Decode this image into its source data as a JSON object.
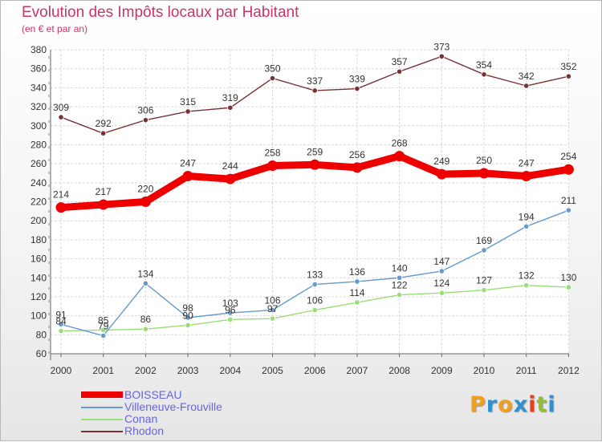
{
  "title": "Evolution des Impôts locaux par Habitant",
  "subtitle": "(en € et par an)",
  "logo": {
    "letters": [
      "P",
      "r",
      "o",
      "x",
      "i",
      "t",
      "i"
    ],
    "colors": [
      "#f0a020",
      "#3090d0",
      "#f0a020",
      "#3090d0",
      "#e04020",
      "#90c030",
      "#3090d0"
    ]
  },
  "chart_data": {
    "type": "line",
    "categories": [
      "2000",
      "2001",
      "2002",
      "2003",
      "2004",
      "2005",
      "2006",
      "2007",
      "2008",
      "2009",
      "2010",
      "2011",
      "2012"
    ],
    "ylim": [
      60,
      380
    ],
    "yticks": [
      60,
      80,
      100,
      120,
      140,
      160,
      180,
      200,
      220,
      240,
      260,
      280,
      300,
      320,
      340,
      360,
      380
    ],
    "grid": true,
    "legend_position": "bottom-left",
    "series": [
      {
        "name": "BOISSEAU",
        "color": "#ee0000",
        "values": [
          214,
          217,
          220,
          247,
          244,
          258,
          259,
          256,
          268,
          249,
          250,
          247,
          254
        ]
      },
      {
        "name": "Villeneuve-Frouville",
        "color": "#6699cc",
        "values": [
          91,
          79,
          134,
          98,
          103,
          106,
          133,
          136,
          140,
          147,
          169,
          194,
          211
        ]
      },
      {
        "name": "Conan",
        "color": "#99dd77",
        "values": [
          84,
          85,
          86,
          90,
          96,
          97,
          106,
          114,
          122,
          124,
          127,
          132,
          130
        ]
      },
      {
        "name": "Rhodon",
        "color": "#773333",
        "values": [
          309,
          292,
          306,
          315,
          319,
          350,
          337,
          339,
          357,
          373,
          354,
          342,
          352
        ]
      }
    ],
    "value_labels": {
      "BOISSEAU": [
        "214",
        "217",
        "220",
        "247",
        "244",
        "258",
        "259",
        "256",
        "268",
        "249",
        "250",
        "247",
        "254"
      ],
      "Villeneuve-Frouville": [
        "91",
        "79",
        "134",
        "98",
        "103",
        "106",
        "133",
        "136",
        "140",
        "147",
        "169",
        "194",
        "211"
      ],
      "Conan": [
        "84",
        "85",
        "86",
        "90",
        "96",
        "97",
        "106",
        "114",
        "122",
        "124",
        "127",
        "132",
        "130"
      ],
      "Rhodon": [
        "309",
        "292",
        "306",
        "315",
        "319",
        "350",
        "337",
        "339",
        "357",
        "373",
        "354",
        "342",
        "352"
      ]
    }
  }
}
